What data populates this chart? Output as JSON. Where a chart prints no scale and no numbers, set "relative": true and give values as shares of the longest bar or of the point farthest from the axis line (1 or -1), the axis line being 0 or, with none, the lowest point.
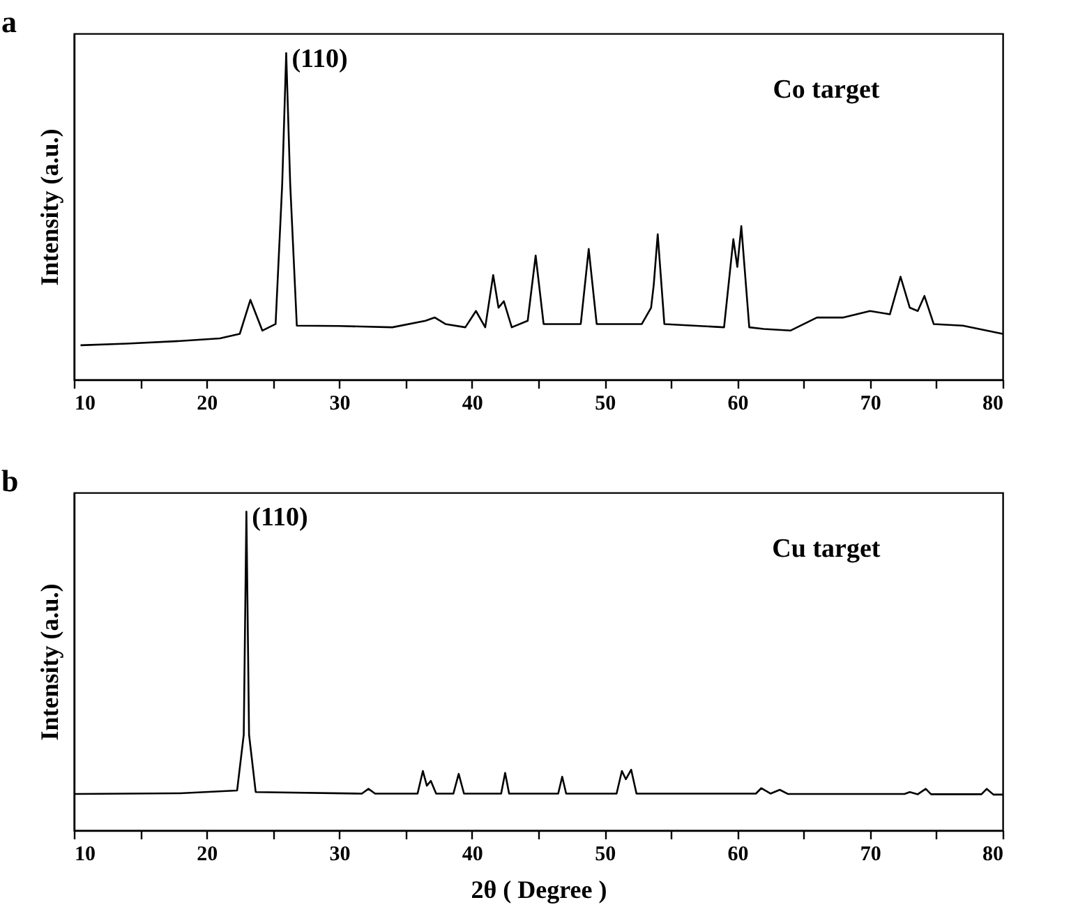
{
  "chart_data": [
    {
      "type": "line",
      "title": "a",
      "ylabel": "Intensity (a.u.)",
      "relative": true,
      "xlim": [
        10,
        80
      ],
      "xticks": [
        10,
        {
          "value": 15,
          "label": null
        },
        20,
        {
          "value": 25,
          "label": null
        },
        30,
        {
          "value": 35,
          "label": null
        },
        40,
        {
          "value": 45,
          "label": null
        },
        50,
        {
          "value": 55,
          "label": null
        },
        60,
        {
          "value": 65,
          "label": null
        },
        70,
        {
          "value": 75,
          "label": null
        },
        80
      ],
      "annotations": [
        {
          "text": "(110)",
          "x": 26,
          "y": 1
        },
        "Co target"
      ],
      "series": [
        {
          "color": "#000000",
          "x": [
            10.5,
            14,
            18,
            21,
            22.5,
            23.3,
            24.2,
            25.2,
            25.7,
            26,
            26.3,
            26.8,
            30,
            34,
            36.5,
            37.2,
            38,
            39.5,
            40.3,
            41,
            41.6,
            42,
            42.4,
            43,
            44.2,
            44.8,
            45.4,
            48.2,
            48.8,
            49.4,
            52.8,
            53.5,
            53.7,
            54,
            54.5,
            59,
            59.7,
            60,
            60.3,
            60.9,
            62,
            64,
            66,
            68,
            70,
            71.5,
            72.3,
            73,
            73.6,
            74.1,
            74.8,
            77,
            80
          ],
          "values": [
            0.105,
            0.11,
            0.118,
            0.126,
            0.14,
            0.244,
            0.15,
            0.17,
            0.6,
            1,
            0.6,
            0.165,
            0.164,
            0.16,
            0.18,
            0.19,
            0.17,
            0.16,
            0.21,
            0.16,
            0.32,
            0.22,
            0.24,
            0.16,
            0.18,
            0.38,
            0.17,
            0.17,
            0.4,
            0.17,
            0.17,
            0.22,
            0.29,
            0.445,
            0.17,
            0.16,
            0.43,
            0.345,
            0.47,
            0.16,
            0.155,
            0.15,
            0.19,
            0.19,
            0.21,
            0.2,
            0.315,
            0.22,
            0.21,
            0.256,
            0.17,
            0.165,
            0.14
          ]
        }
      ]
    },
    {
      "type": "line",
      "title": "b",
      "xlabel": "2θ ( Degree )",
      "ylabel": "Intensity (a.u.)",
      "relative": true,
      "xlim": [
        10,
        80
      ],
      "xticks": [
        10,
        {
          "value": 15,
          "label": null
        },
        20,
        {
          "value": 25,
          "label": null
        },
        30,
        {
          "value": 35,
          "label": null
        },
        40,
        {
          "value": 45,
          "label": null
        },
        50,
        {
          "value": 55,
          "label": null
        },
        60,
        {
          "value": 65,
          "label": null
        },
        70,
        {
          "value": 75,
          "label": null
        },
        80
      ],
      "annotations": [
        {
          "text": "(110)",
          "x": 23,
          "y": 1
        },
        "Cu target"
      ],
      "series": [
        {
          "color": "#000000",
          "x": [
            10,
            18,
            22.3,
            22.8,
            23,
            23.2,
            23.7,
            31.7,
            32.2,
            32.7,
            35.9,
            36.3,
            36.6,
            36.9,
            37.3,
            38.6,
            39,
            39.4,
            42.2,
            42.5,
            42.8,
            46.5,
            46.8,
            47.1,
            50.9,
            51.3,
            51.6,
            52,
            52.4,
            61.4,
            61.8,
            62.5,
            63.2,
            63.8,
            72.6,
            73,
            73.6,
            74.2,
            74.6,
            78.4,
            78.8,
            79.3,
            80
          ],
          "values": [
            0.114,
            0.116,
            0.125,
            0.3,
            1,
            0.3,
            0.12,
            0.115,
            0.13,
            0.115,
            0.115,
            0.186,
            0.14,
            0.155,
            0.115,
            0.115,
            0.177,
            0.115,
            0.115,
            0.18,
            0.115,
            0.115,
            0.168,
            0.115,
            0.115,
            0.186,
            0.16,
            0.19,
            0.115,
            0.115,
            0.132,
            0.115,
            0.127,
            0.114,
            0.114,
            0.12,
            0.113,
            0.13,
            0.113,
            0.113,
            0.13,
            0.112,
            0.112
          ]
        }
      ]
    }
  ]
}
